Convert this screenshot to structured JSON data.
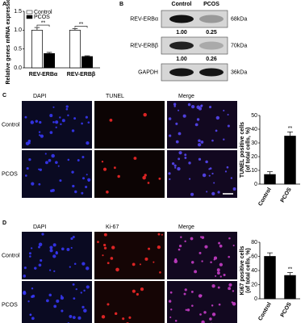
{
  "panels": [
    {
      "label": "A"
    },
    {
      "label": "B"
    },
    {
      "label": "C",
      "columns": [
        "DAPI",
        "TUNEL",
        "Merge"
      ],
      "rows": [
        "Control",
        "PCOS"
      ]
    },
    {
      "label": "D",
      "columns": [
        "DAPI",
        "Ki-67",
        "Merge"
      ],
      "rows": [
        "Control",
        "PCOS"
      ]
    }
  ],
  "blot": {
    "columns": [
      "Control",
      "PCOS"
    ],
    "rows": [
      {
        "name": "REV-ERBα",
        "size": "68kDa",
        "quantification": [
          "1.00",
          "0.25"
        ]
      },
      {
        "name": "REV-ERBβ",
        "size": "70kDa",
        "quantification": [
          "1.00",
          "0.26"
        ]
      },
      {
        "name": "GAPDH",
        "size": "36kDa"
      }
    ]
  },
  "chart_data": [
    {
      "type": "bar",
      "ylabel": [
        "Relative genes mRNA expression"
      ],
      "categories": [
        "REV-ERBα",
        "REV-ERBβ"
      ],
      "series": [
        {
          "name": "Control",
          "color": "#ffffff",
          "values": [
            1.0,
            1.0
          ],
          "errors": [
            0.07,
            0.04
          ]
        },
        {
          "name": "PCOS",
          "color": "#000000",
          "values": [
            0.38,
            0.3
          ],
          "errors": [
            0.03,
            0.02
          ]
        }
      ],
      "annotations": [
        "**",
        "**"
      ],
      "ylim": [
        0,
        1.5
      ],
      "yticks": [
        {
          "value": 0,
          "label": "0.0"
        },
        {
          "value": 0.5,
          "label": "0.5"
        },
        {
          "value": 1,
          "label": "1.0"
        },
        {
          "value": 1.5,
          "label": "1.5"
        }
      ],
      "legend": "upper left"
    },
    {
      "type": "bar",
      "ylabel": [
        "TUNEL positive cells",
        "(of total cells, %)"
      ],
      "categories": [
        "Control",
        "PCOS"
      ],
      "values": [
        7,
        35
      ],
      "errors": [
        2,
        3
      ],
      "color": "#000000",
      "annotations": [
        null,
        "**"
      ],
      "ylim": [
        0,
        50
      ],
      "yticks": [
        0,
        10,
        20,
        30,
        40,
        50
      ]
    },
    {
      "type": "bar",
      "ylabel": [
        "Ki67 positive cells",
        "(of total cells, %)"
      ],
      "categories": [
        "Control",
        "PCOS"
      ],
      "values": [
        60,
        33
      ],
      "errors": [
        5,
        4
      ],
      "color": "#000000",
      "annotations": [
        null,
        "**"
      ],
      "ylim": [
        0,
        80
      ],
      "yticks": [
        0,
        20,
        40,
        60,
        80
      ]
    }
  ]
}
